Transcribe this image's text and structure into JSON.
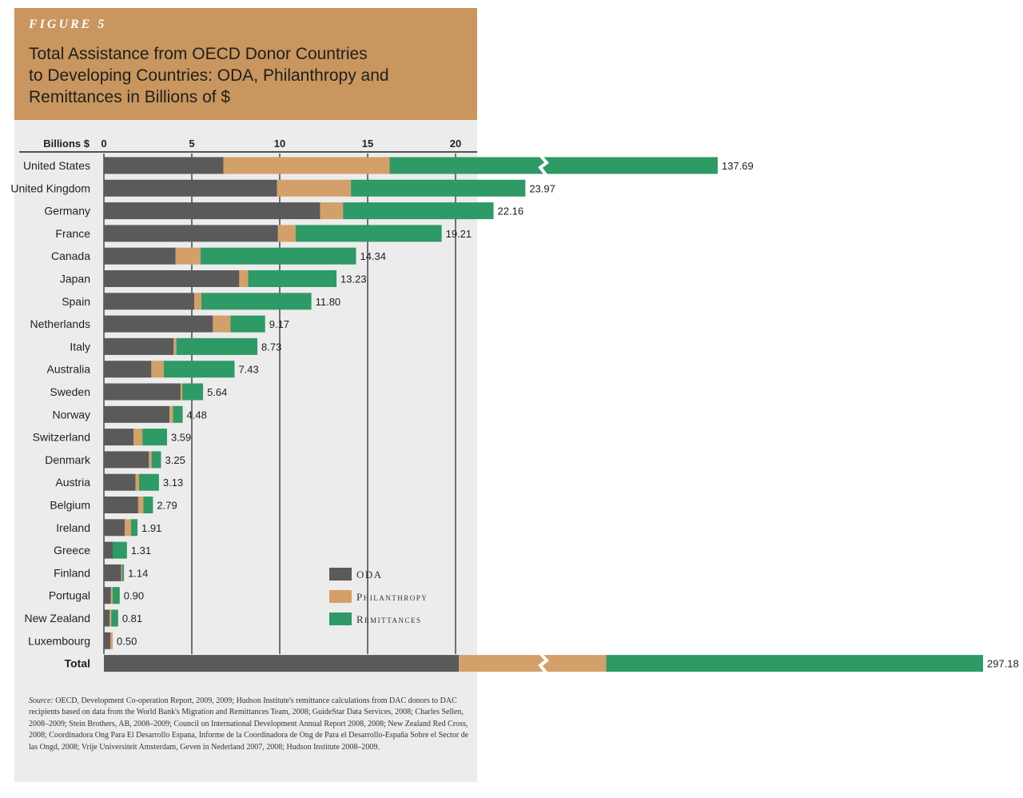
{
  "figure_label": "FIGURE 5",
  "title": "Total Assistance from OECD Donor Countries\nto Developing Countries: ODA, Philanthropy and\nRemittances in Billions of $",
  "colors": {
    "oda": "#5a5a5a",
    "philanthropy": "#d4a06a",
    "remittances": "#2e9a66",
    "header": "#c8965e",
    "panel": "#ececec",
    "total_label": "#c0392b"
  },
  "chart_data": {
    "type": "bar",
    "orientation": "horizontal",
    "stacked": true,
    "axis_label": "Billions $",
    "x_ticks": [
      0,
      5,
      10,
      15,
      20
    ],
    "xlim": [
      0,
      25
    ],
    "grid": true,
    "legend_position": "bottom-right",
    "categories": [
      "United States",
      "United Kingdom",
      "Germany",
      "France",
      "Canada",
      "Japan",
      "Spain",
      "Netherlands",
      "Italy",
      "Australia",
      "Sweden",
      "Norway",
      "Switzerland",
      "Denmark",
      "Austria",
      "Belgium",
      "Ireland",
      "Greece",
      "Finland",
      "Portugal",
      "New Zealand",
      "Luxembourg",
      "Total"
    ],
    "series": [
      {
        "name": "ODA",
        "values": [
          26.8,
          9.85,
          12.3,
          9.9,
          4.08,
          7.7,
          5.14,
          6.2,
          3.97,
          2.7,
          4.36,
          3.73,
          1.69,
          2.56,
          1.8,
          1.95,
          1.19,
          0.5,
          0.98,
          0.4,
          0.32,
          0.37,
          120.0
        ]
      },
      {
        "name": "Philanthropy",
        "values": [
          37.3,
          4.2,
          1.3,
          1.0,
          1.42,
          0.5,
          0.4,
          1.0,
          0.15,
          0.7,
          0.1,
          0.2,
          0.5,
          0.15,
          0.2,
          0.3,
          0.35,
          0.0,
          0.06,
          0.1,
          0.1,
          0.13,
          49.8
        ]
      },
      {
        "name": "Remittances",
        "values": [
          73.59,
          9.92,
          8.56,
          8.31,
          8.84,
          5.03,
          6.26,
          1.97,
          4.61,
          4.03,
          1.18,
          0.55,
          1.4,
          0.54,
          1.13,
          0.54,
          0.37,
          0.81,
          0.1,
          0.4,
          0.39,
          0.0,
          127.38
        ]
      }
    ],
    "totals": [
      "137.69",
      "23.97",
      "22.16",
      "19.21",
      "14.34",
      "13.23",
      "11.80",
      "9.17",
      "8.73",
      "7.43",
      "5.64",
      "4.48",
      "3.59",
      "3.25",
      "3.13",
      "2.79",
      "1.91",
      "1.31",
      "1.14",
      "0.90",
      "0.81",
      "0.50",
      "297.18"
    ],
    "breaks": [
      "United States",
      "Total"
    ]
  },
  "source_label": "Source:",
  "source_text": " OECD, Development Co-operation Report, 2009, 2009; Hudson Institute's remittance calculations from DAC donors to DAC recipients based on data from the World Bank's Migration and Remittances Team, 2008; GuideStar Data Services, 2008; Charles Sellen, 2008–2009; Stein Brothers, AB, 2008–2009; Council on International Development Annual Report 2008, 2008; New Zealand Red Cross, 2008; Coordinadora Ong Para El Desarrollo Espana, Informe de la Coordinadora de Ong de Para el Desarrollo-España Sobre el Sector de las Ongd, 2008; Vrije Universiteit Amsterdam, Geven in Nederland 2007, 2008; Hudson Institute 2008–2009."
}
